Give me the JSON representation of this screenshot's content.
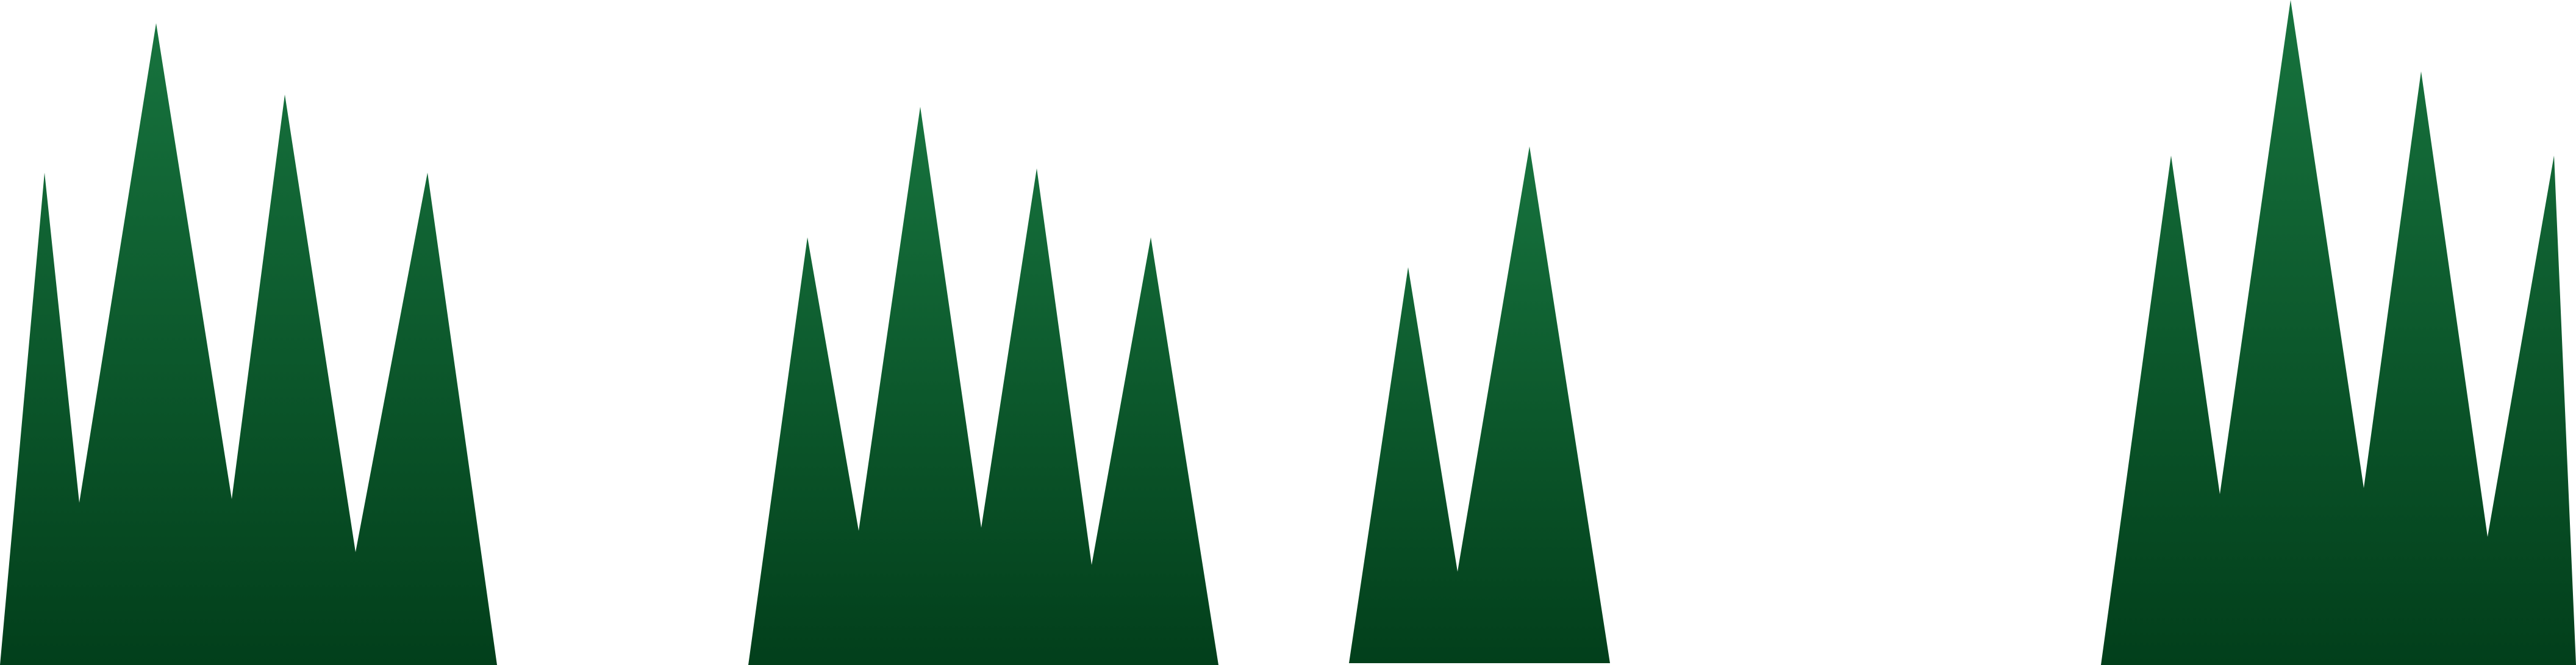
{
  "colors": {
    "background": "#ffffff",
    "gradient_top": "#17733e",
    "gradient_bottom": "#023f1b"
  },
  "tufts": [
    {
      "name": "grass-tuft-1",
      "blades": 4
    },
    {
      "name": "grass-tuft-2",
      "blades": 4
    },
    {
      "name": "grass-tuft-3",
      "blades": 2
    },
    {
      "name": "grass-tuft-4",
      "blades": 4
    }
  ]
}
